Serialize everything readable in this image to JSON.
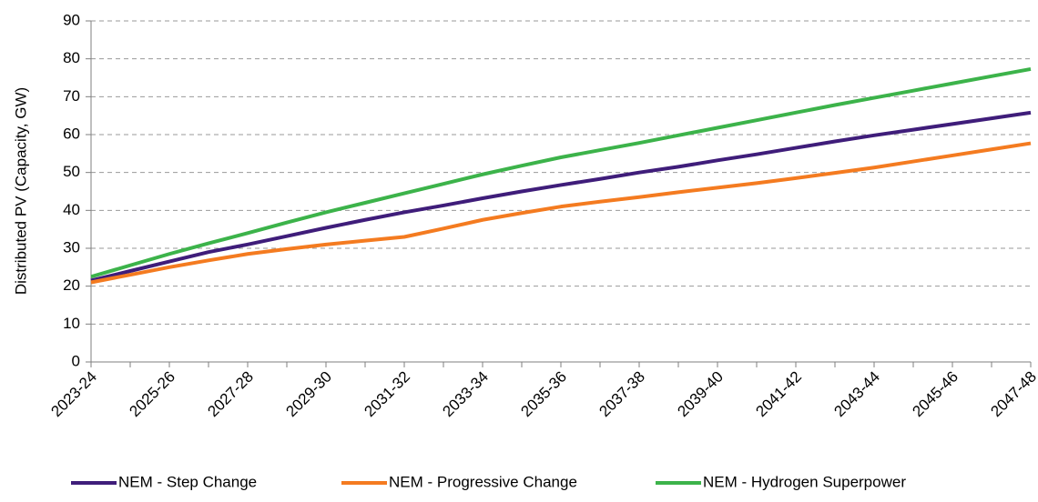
{
  "chart_data": {
    "type": "line",
    "y_label": "Distributed PV (Capacity, GW)",
    "categories": [
      "2023-24",
      null,
      "2025-26",
      null,
      "2027-28",
      null,
      "2029-30",
      null,
      "2031-32",
      null,
      "2033-34",
      null,
      "2035-36",
      null,
      "2037-38",
      null,
      "2039-40",
      null,
      "2041-42",
      null,
      "2043-44",
      null,
      "2045-46",
      null,
      "2047-48"
    ],
    "series": [
      {
        "name": "NEM - Step Change",
        "color": "#3f1d7a",
        "values": [
          21.5,
          24,
          26.5,
          29,
          31,
          33.2,
          35.4,
          37.5,
          39.5,
          41.3,
          43.2,
          45,
          46.7,
          48.3,
          50,
          51.5,
          53.2,
          54.8,
          56.5,
          58.2,
          59.8,
          61.3,
          62.8,
          64.3,
          65.8
        ]
      },
      {
        "name": "NEM - Progressive Change",
        "color": "#f47b20",
        "values": [
          21,
          23,
          25,
          26.8,
          28.5,
          29.8,
          31,
          32,
          33,
          35.2,
          37.5,
          39.3,
          41,
          42.3,
          43.5,
          44.8,
          46,
          47.2,
          48.5,
          49.9,
          51.3,
          52.9,
          54.5,
          56.1,
          57.7
        ]
      },
      {
        "name": "NEM - Hydrogen Superpower",
        "color": "#3cb34a",
        "values": [
          22.5,
          25.5,
          28.5,
          31.3,
          34,
          36.8,
          39.5,
          42,
          44.5,
          47,
          49.5,
          51.8,
          54,
          55.9,
          57.8,
          59.8,
          61.8,
          63.8,
          65.8,
          67.8,
          69.7,
          71.6,
          73.5,
          75.4,
          77.3
        ]
      }
    ],
    "ylim": [
      0,
      90
    ],
    "yticks": [
      0,
      10,
      20,
      30,
      40,
      50,
      60,
      70,
      80,
      90
    ],
    "grid": true,
    "legend": "bottom"
  }
}
